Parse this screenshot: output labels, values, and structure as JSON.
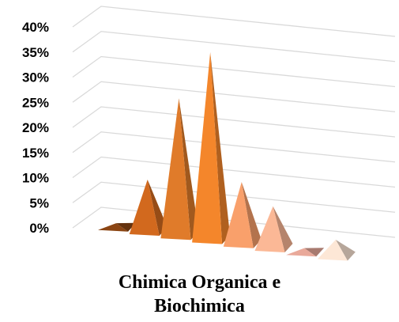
{
  "chart_data": {
    "type": "bar",
    "subtype": "3d-pyramid",
    "title_lines": [
      "Chimica Organica e",
      "Biochimica"
    ],
    "xlabel": "",
    "ylabel": "",
    "ylim": [
      0,
      40
    ],
    "y_ticks": [
      "0%",
      "5%",
      "10%",
      "15%",
      "20%",
      "25%",
      "30%",
      "35%",
      "40%"
    ],
    "y_tick_values": [
      0,
      5,
      10,
      15,
      20,
      25,
      30,
      35,
      40
    ],
    "grid": true,
    "legend": "none",
    "series": [
      {
        "values": [
          0.5,
          10,
          27,
          37,
          12,
          8,
          0.5,
          3
        ],
        "colors": [
          "#8b4513",
          "#d2691e",
          "#e07b2a",
          "#f4862b",
          "#f9a06b",
          "#fbb896",
          "#e9a99a",
          "#fde7d6"
        ]
      }
    ]
  }
}
